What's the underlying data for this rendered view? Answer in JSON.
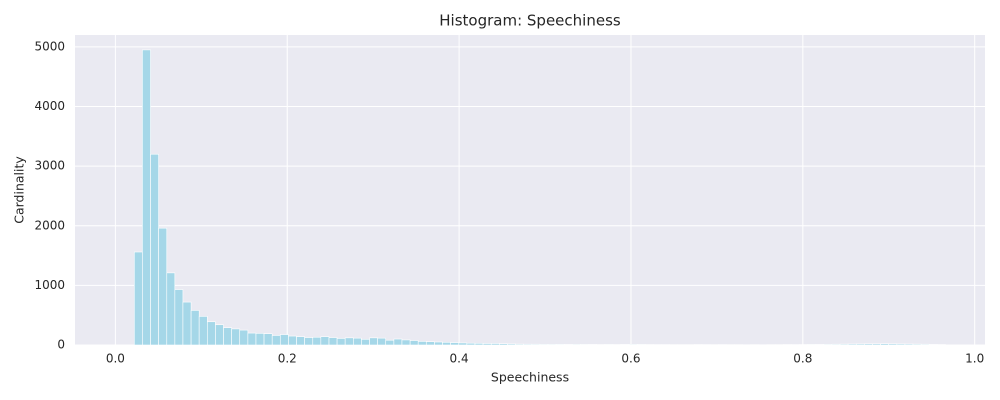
{
  "chart_data": {
    "type": "histogram",
    "title": "Histogram: Speechiness",
    "x_label": "Speechiness",
    "y_label": "Cardinality",
    "color": "#a5d7e8",
    "grid": true,
    "xlim": [
      -0.047,
      1.012
    ],
    "ylim": [
      0,
      5200
    ],
    "xticks": [
      {
        "value": 0,
        "label": "0.0"
      },
      0.2,
      0.4,
      0.6,
      0.8,
      {
        "value": 1,
        "label": "1.0"
      }
    ],
    "yticks": [
      0,
      1000,
      2000,
      3000,
      4000,
      5000
    ],
    "bins": [
      0.022,
      0.0314,
      0.0409,
      0.0503,
      0.0598,
      0.0692,
      0.0786,
      0.0881,
      0.0975,
      0.107,
      0.1164,
      0.1258,
      0.1353,
      0.1447,
      0.1542,
      0.1636,
      0.173,
      0.1825,
      0.1919,
      0.2014,
      0.2108,
      0.2202,
      0.2297,
      0.2391,
      0.2486,
      0.258,
      0.2674,
      0.2769,
      0.2863,
      0.2958,
      0.3052,
      0.3146,
      0.3241,
      0.3335,
      0.343,
      0.3524,
      0.3618,
      0.3713,
      0.3807,
      0.3902,
      0.3996,
      0.409,
      0.4185,
      0.4279,
      0.4374,
      0.4468,
      0.4562,
      0.4657,
      0.4751,
      0.4846,
      0.494,
      0.5034,
      0.5129,
      0.5223,
      0.5318,
      0.5412,
      0.5506,
      0.5601,
      0.5695,
      0.579,
      0.5884,
      0.5978,
      0.6073,
      0.6167,
      0.6262,
      0.6356,
      0.645,
      0.6545,
      0.6639,
      0.6734,
      0.6828,
      0.6922,
      0.7017,
      0.7111,
      0.7206,
      0.73,
      0.7394,
      0.7489,
      0.7583,
      0.7678,
      0.7772,
      0.7866,
      0.7961,
      0.8055,
      0.815,
      0.8244,
      0.8338,
      0.8433,
      0.8527,
      0.8622,
      0.8716,
      0.881,
      0.8905,
      0.8999,
      0.9094,
      0.9188,
      0.9282,
      0.9377,
      0.9471,
      0.9566,
      0.966
    ],
    "values": [
      1560,
      4950,
      3200,
      1960,
      1210,
      930,
      720,
      580,
      480,
      390,
      340,
      290,
      270,
      250,
      200,
      195,
      190,
      160,
      175,
      150,
      140,
      125,
      130,
      140,
      125,
      110,
      120,
      115,
      95,
      120,
      115,
      80,
      100,
      85,
      75,
      60,
      55,
      50,
      45,
      40,
      35,
      30,
      28,
      25,
      25,
      22,
      18,
      15,
      14,
      13,
      12,
      12,
      11,
      10,
      12,
      9,
      10,
      8,
      9,
      8,
      10,
      12,
      9,
      8,
      7,
      7,
      6,
      6,
      6,
      8,
      7,
      6,
      7,
      6,
      6,
      5,
      6,
      5,
      6,
      6,
      8,
      7,
      8,
      9,
      10,
      12,
      13,
      15,
      17,
      18,
      20,
      20,
      22,
      20,
      18,
      17,
      15,
      13,
      10,
      8
    ]
  }
}
